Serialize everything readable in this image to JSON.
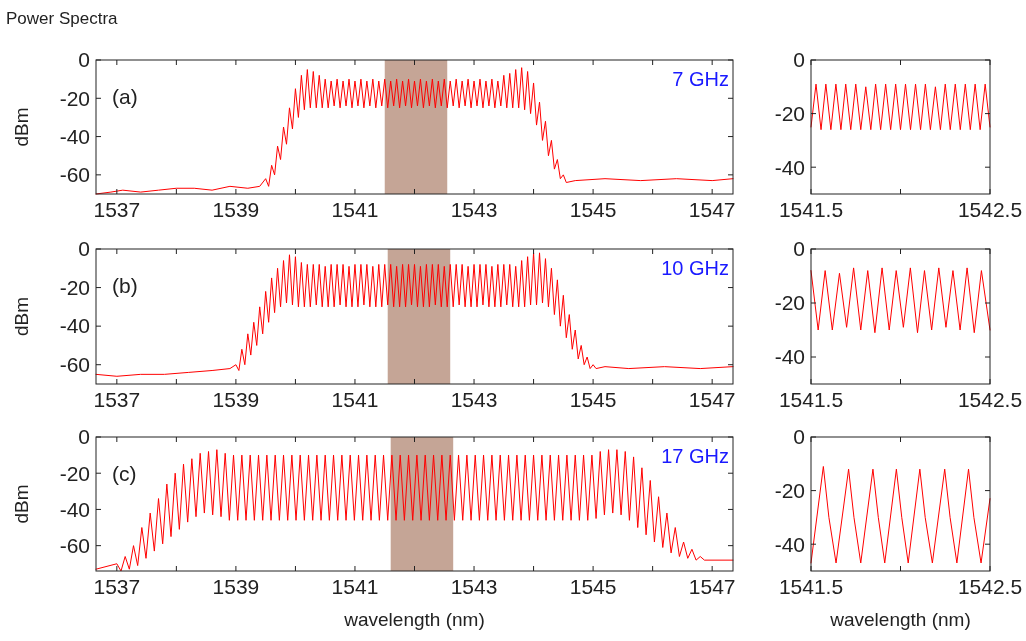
{
  "chart_data": [
    {
      "type": "line",
      "title": "Power Spectra",
      "ylabel": "dBm",
      "annotations": [
        "(a)",
        "7 GHz"
      ],
      "xlim": [
        1536.65,
        1547.35
      ],
      "xticks": [
        1537,
        {
          "value": 1538,
          "label": null
        },
        1539,
        {
          "value": 1540,
          "label": null
        },
        1541,
        {
          "value": 1542,
          "label": null
        },
        1543,
        {
          "value": 1544,
          "label": null
        },
        1545,
        {
          "value": 1546,
          "label": null
        },
        1547
      ],
      "ylim": [
        -70,
        0
      ],
      "yticks": [
        0,
        -20,
        -40,
        -60
      ],
      "bands": [
        {
          "axis": "x",
          "from": 1541.5,
          "to": 1542.55,
          "color": "#c5a596"
        }
      ],
      "series": [
        {
          "color": "#ff0000",
          "x": [
            1536.65,
            1536.9,
            1537.1,
            1537.4,
            1537.7,
            1538,
            1538.3,
            1538.6,
            1538.9,
            1539.2,
            1539.4,
            1539.5,
            1539.55,
            1539.6,
            1539.65,
            1539.7,
            1539.75,
            1539.8,
            1539.85,
            1539.9,
            1539.95,
            1540,
            1540.05,
            1540.1,
            1540.15,
            1540.2,
            1540.25,
            1540.3,
            1540.35,
            1540.4,
            1540.45,
            1540.5,
            1540.55,
            1540.6,
            1540.65,
            1540.7,
            1540.75,
            1540.8,
            1540.85,
            1540.9,
            1540.95,
            1541,
            1541.05,
            1541.1,
            1541.15,
            1541.2,
            1541.25,
            1541.3,
            1541.35,
            1541.4,
            1541.45,
            1541.5,
            1541.55,
            1541.6,
            1541.65,
            1541.7,
            1541.75,
            1541.8,
            1541.85,
            1541.9,
            1541.95,
            1542,
            1542.05,
            1542.1,
            1542.15,
            1542.2,
            1542.25,
            1542.3,
            1542.35,
            1542.4,
            1542.45,
            1542.5,
            1542.55,
            1542.6,
            1542.65,
            1542.7,
            1542.75,
            1542.8,
            1542.85,
            1542.9,
            1542.95,
            1543,
            1543.05,
            1543.1,
            1543.15,
            1543.2,
            1543.25,
            1543.3,
            1543.35,
            1543.4,
            1543.45,
            1543.5,
            1543.55,
            1543.6,
            1543.65,
            1543.7,
            1543.75,
            1543.8,
            1543.85,
            1543.9,
            1543.95,
            1544,
            1544.05,
            1544.1,
            1544.15,
            1544.2,
            1544.25,
            1544.3,
            1544.35,
            1544.4,
            1544.45,
            1544.5,
            1544.55,
            1544.7,
            1545.2,
            1545.8,
            1546.4,
            1547,
            1547.35
          ],
          "values": [
            -70,
            -69,
            -68,
            -69,
            -68,
            -67,
            -67,
            -68,
            -66,
            -67,
            -66,
            -62,
            -66,
            -55,
            -60,
            -45,
            -52,
            -35,
            -44,
            -25,
            -36,
            -15,
            -30,
            -8,
            -26,
            -5,
            -25,
            -6,
            -25,
            -8,
            -25,
            -10,
            -25,
            -11,
            -24,
            -10,
            -25,
            -11,
            -24,
            -10,
            -25,
            -11,
            -24,
            -10,
            -25,
            -11,
            -24,
            -10,
            -25,
            -11,
            -24,
            -10,
            -25,
            -11,
            -24,
            -10,
            -25,
            -11,
            -24,
            -10,
            -25,
            -11,
            -24,
            -10,
            -25,
            -11,
            -24,
            -10,
            -25,
            -11,
            -24,
            -10,
            -25,
            -11,
            -24,
            -10,
            -25,
            -11,
            -24,
            -10,
            -25,
            -11,
            -24,
            -10,
            -25,
            -11,
            -24,
            -10,
            -25,
            -11,
            -24,
            -8,
            -25,
            -7,
            -25,
            -5,
            -25,
            -4,
            -26,
            -6,
            -28,
            -12,
            -34,
            -22,
            -42,
            -32,
            -50,
            -42,
            -57,
            -52,
            -62,
            -60,
            -64,
            -63,
            -62,
            -63,
            -62,
            -63,
            -62
          ]
        }
      ]
    },
    {
      "type": "line",
      "xlim": [
        1541.5,
        1542.5
      ],
      "xticks": [
        1541.5,
        {
          "value": 1542,
          "label": null
        },
        1542.5
      ],
      "ylim": [
        -50,
        0
      ],
      "yticks": [
        0,
        -20,
        -40
      ],
      "series": [
        {
          "color": "#ff0000",
          "x": [
            1541.5,
            1541.528,
            1541.556,
            1541.583,
            1541.611,
            1541.639,
            1541.667,
            1541.694,
            1541.722,
            1541.75,
            1541.778,
            1541.806,
            1541.834,
            1541.861,
            1541.889,
            1541.917,
            1541.945,
            1541.973,
            1542,
            1542.028,
            1542.056,
            1542.084,
            1542.112,
            1542.139,
            1542.167,
            1542.195,
            1542.223,
            1542.25,
            1542.278,
            1542.306,
            1542.334,
            1542.362,
            1542.39,
            1542.417,
            1542.445,
            1542.473,
            1542.5
          ],
          "values": [
            -25,
            -9,
            -26,
            -9,
            -26,
            -9,
            -26,
            -9,
            -26,
            -9,
            -26,
            -10,
            -26,
            -9,
            -26,
            -9,
            -26,
            -9,
            -26,
            -9,
            -26,
            -9,
            -26,
            -9,
            -26,
            -10,
            -26,
            -9,
            -26,
            -9,
            -26,
            -9,
            -26,
            -9,
            -26,
            -9,
            -25
          ]
        }
      ]
    },
    {
      "type": "line",
      "ylabel": "dBm",
      "annotations": [
        "(b)",
        "10 GHz"
      ],
      "xlim": [
        1536.65,
        1547.35
      ],
      "xticks": [
        1537,
        {
          "value": 1538,
          "label": null
        },
        1539,
        {
          "value": 1540,
          "label": null
        },
        1541,
        {
          "value": 1542,
          "label": null
        },
        1543,
        {
          "value": 1544,
          "label": null
        },
        1545,
        {
          "value": 1546,
          "label": null
        },
        1547
      ],
      "ylim": [
        -70,
        0
      ],
      "yticks": [
        0,
        -20,
        -40,
        -60
      ],
      "bands": [
        {
          "axis": "x",
          "from": 1541.55,
          "to": 1542.6,
          "color": "#c5a596"
        }
      ],
      "series": [
        {
          "color": "#ff0000",
          "x": [
            1536.65,
            1537,
            1537.4,
            1537.8,
            1538.2,
            1538.6,
            1538.9,
            1539,
            1539.05,
            1539.1,
            1539.15,
            1539.2,
            1539.25,
            1539.3,
            1539.35,
            1539.4,
            1539.45,
            1539.5,
            1539.55,
            1539.6,
            1539.65,
            1539.7,
            1539.75,
            1539.8,
            1539.85,
            1539.9,
            1539.95,
            1540,
            1540.05,
            1540.1,
            1540.15,
            1540.2,
            1540.25,
            1540.3,
            1540.35,
            1540.4,
            1540.45,
            1540.5,
            1540.55,
            1540.6,
            1540.65,
            1540.7,
            1540.75,
            1540.8,
            1540.85,
            1540.9,
            1540.95,
            1541,
            1541.05,
            1541.1,
            1541.15,
            1541.2,
            1541.25,
            1541.3,
            1541.35,
            1541.4,
            1541.45,
            1541.5,
            1541.55,
            1541.6,
            1541.65,
            1541.7,
            1541.75,
            1541.8,
            1541.85,
            1541.9,
            1541.95,
            1542,
            1542.05,
            1542.1,
            1542.15,
            1542.2,
            1542.25,
            1542.3,
            1542.35,
            1542.4,
            1542.45,
            1542.5,
            1542.55,
            1542.6,
            1542.65,
            1542.7,
            1542.75,
            1542.8,
            1542.85,
            1542.9,
            1542.95,
            1543,
            1543.05,
            1543.1,
            1543.15,
            1543.2,
            1543.25,
            1543.3,
            1543.35,
            1543.4,
            1543.45,
            1543.5,
            1543.55,
            1543.6,
            1543.65,
            1543.7,
            1543.75,
            1543.8,
            1543.85,
            1543.9,
            1543.95,
            1544,
            1544.05,
            1544.1,
            1544.15,
            1544.2,
            1544.25,
            1544.3,
            1544.35,
            1544.4,
            1544.45,
            1544.5,
            1544.55,
            1544.6,
            1544.65,
            1544.7,
            1544.75,
            1544.8,
            1544.85,
            1544.9,
            1544.95,
            1545,
            1545.05,
            1545.2,
            1545.6,
            1546.2,
            1546.8,
            1547.35
          ],
          "values": [
            -65,
            -66,
            -65,
            -65,
            -64,
            -63,
            -62,
            -60,
            -63,
            -52,
            -60,
            -44,
            -55,
            -38,
            -50,
            -30,
            -44,
            -22,
            -38,
            -15,
            -33,
            -10,
            -30,
            -6,
            -28,
            -3,
            -29,
            -4,
            -30,
            -7,
            -30,
            -8,
            -30,
            -8,
            -29,
            -8,
            -30,
            -9,
            -30,
            -8,
            -30,
            -8,
            -29,
            -8,
            -30,
            -9,
            -30,
            -8,
            -30,
            -8,
            -29,
            -8,
            -30,
            -9,
            -30,
            -8,
            -30,
            -8,
            -29,
            -8,
            -30,
            -9,
            -30,
            -8,
            -30,
            -8,
            -29,
            -8,
            -30,
            -9,
            -30,
            -8,
            -30,
            -8,
            -29,
            -8,
            -30,
            -9,
            -30,
            -8,
            -30,
            -8,
            -29,
            -8,
            -30,
            -9,
            -30,
            -8,
            -30,
            -8,
            -29,
            -8,
            -30,
            -9,
            -30,
            -8,
            -30,
            -8,
            -29,
            -8,
            -30,
            -9,
            -30,
            -6,
            -30,
            -4,
            -29,
            -2,
            -29,
            -2,
            -28,
            -5,
            -30,
            -10,
            -34,
            -16,
            -40,
            -24,
            -46,
            -34,
            -52,
            -42,
            -57,
            -50,
            -60,
            -56,
            -62,
            -60,
            -62,
            -61,
            -62,
            -61,
            -62,
            -61
          ]
        }
      ]
    },
    {
      "type": "line",
      "xlim": [
        1541.5,
        1542.5
      ],
      "xticks": [
        1541.5,
        {
          "value": 1542,
          "label": null
        },
        1542.5
      ],
      "ylim": [
        -50,
        0
      ],
      "yticks": [
        0,
        -20,
        -40
      ],
      "series": [
        {
          "color": "#ff0000",
          "x": [
            1541.5,
            1541.54,
            1541.579,
            1541.619,
            1541.659,
            1541.699,
            1541.738,
            1541.778,
            1541.817,
            1541.857,
            1541.897,
            1541.937,
            1541.976,
            1542.016,
            1542.055,
            1542.095,
            1542.134,
            1542.174,
            1542.214,
            1542.254,
            1542.293,
            1542.333,
            1542.372,
            1542.412,
            1542.452,
            1542.5
          ],
          "values": [
            -8,
            -30,
            -8,
            -30,
            -9,
            -29,
            -7,
            -30,
            -8,
            -31,
            -7,
            -30,
            -8,
            -29,
            -7,
            -31,
            -8,
            -30,
            -7,
            -29,
            -8,
            -30,
            -7,
            -31,
            -8,
            -30
          ]
        }
      ]
    },
    {
      "type": "line",
      "ylabel": "dBm",
      "xlabel": "wavelength (nm)",
      "annotations": [
        "(c)",
        "17 GHz"
      ],
      "xlim": [
        1536.65,
        1547.35
      ],
      "xticks": [
        1537,
        {
          "value": 1538,
          "label": null
        },
        1539,
        {
          "value": 1540,
          "label": null
        },
        1541,
        {
          "value": 1542,
          "label": null
        },
        1543,
        {
          "value": 1544,
          "label": null
        },
        1545,
        {
          "value": 1546,
          "label": null
        },
        1547
      ],
      "ylim": [
        -74,
        0
      ],
      "yticks": [
        0,
        -20,
        -40,
        -60
      ],
      "bands": [
        {
          "axis": "x",
          "from": 1541.6,
          "to": 1542.65,
          "color": "#c5a596"
        }
      ],
      "series": [
        {
          "color": "#ff0000",
          "x": [
            1536.65,
            1537,
            1537.07,
            1537.14,
            1537.21,
            1537.28,
            1537.35,
            1537.42,
            1537.49,
            1537.56,
            1537.63,
            1537.7,
            1537.77,
            1537.84,
            1537.91,
            1537.98,
            1538.05,
            1538.12,
            1538.19,
            1538.26,
            1538.33,
            1538.4,
            1538.47,
            1538.54,
            1538.61,
            1538.68,
            1538.75,
            1538.82,
            1538.89,
            1538.96,
            1539.03,
            1539.1,
            1539.17,
            1539.24,
            1539.31,
            1539.38,
            1539.45,
            1539.52,
            1539.59,
            1539.66,
            1539.73,
            1539.8,
            1539.87,
            1539.94,
            1540.01,
            1540.08,
            1540.15,
            1540.22,
            1540.29,
            1540.36,
            1540.43,
            1540.5,
            1540.57,
            1540.64,
            1540.71,
            1540.78,
            1540.85,
            1540.92,
            1540.99,
            1541.06,
            1541.13,
            1541.2,
            1541.27,
            1541.34,
            1541.41,
            1541.48,
            1541.55,
            1541.62,
            1541.69,
            1541.76,
            1541.83,
            1541.9,
            1541.97,
            1542.04,
            1542.11,
            1542.18,
            1542.25,
            1542.32,
            1542.39,
            1542.46,
            1542.53,
            1542.6,
            1542.67,
            1542.74,
            1542.81,
            1542.88,
            1542.95,
            1543.02,
            1543.09,
            1543.16,
            1543.23,
            1543.3,
            1543.37,
            1543.44,
            1543.51,
            1543.58,
            1543.65,
            1543.72,
            1543.79,
            1543.86,
            1543.93,
            1544,
            1544.07,
            1544.14,
            1544.21,
            1544.28,
            1544.35,
            1544.42,
            1544.49,
            1544.56,
            1544.63,
            1544.7,
            1544.77,
            1544.84,
            1544.91,
            1544.98,
            1545.05,
            1545.12,
            1545.19,
            1545.26,
            1545.33,
            1545.4,
            1545.47,
            1545.54,
            1545.61,
            1545.68,
            1545.75,
            1545.82,
            1545.89,
            1545.96,
            1546.03,
            1546.1,
            1546.17,
            1546.24,
            1546.31,
            1546.38,
            1546.45,
            1546.52,
            1546.59,
            1546.66,
            1546.73,
            1546.8,
            1546.87,
            1547.35
          ],
          "values": [
            -73,
            -70,
            -74,
            -66,
            -73,
            -60,
            -71,
            -50,
            -67,
            -42,
            -63,
            -34,
            -59,
            -26,
            -55,
            -20,
            -51,
            -15,
            -47,
            -12,
            -44,
            -9,
            -42,
            -8,
            -43,
            -7,
            -44,
            -9,
            -46,
            -10,
            -46,
            -10,
            -46,
            -10,
            -46,
            -10,
            -46,
            -10,
            -46,
            -10,
            -46,
            -10,
            -46,
            -10,
            -46,
            -10,
            -46,
            -10,
            -46,
            -10,
            -46,
            -10,
            -46,
            -10,
            -46,
            -10,
            -46,
            -10,
            -46,
            -10,
            -46,
            -10,
            -46,
            -10,
            -46,
            -10,
            -46,
            -10,
            -46,
            -10,
            -46,
            -10,
            -46,
            -10,
            -46,
            -10,
            -46,
            -10,
            -46,
            -10,
            -46,
            -10,
            -46,
            -10,
            -46,
            -10,
            -46,
            -10,
            -46,
            -10,
            -46,
            -10,
            -46,
            -10,
            -46,
            -10,
            -46,
            -10,
            -46,
            -10,
            -46,
            -10,
            -46,
            -10,
            -46,
            -10,
            -46,
            -10,
            -46,
            -10,
            -46,
            -10,
            -46,
            -10,
            -46,
            -10,
            -45,
            -8,
            -43,
            -7,
            -42,
            -7,
            -43,
            -8,
            -46,
            -11,
            -50,
            -17,
            -54,
            -24,
            -58,
            -33,
            -61,
            -42,
            -64,
            -50,
            -66,
            -58,
            -67,
            -62,
            -68,
            -66,
            -68,
            -68
          ]
        }
      ]
    },
    {
      "type": "line",
      "xlabel": "wavelength (nm)",
      "xlim": [
        1541.5,
        1542.5
      ],
      "xticks": [
        1541.5,
        {
          "value": 1542,
          "label": null
        },
        1542.5
      ],
      "ylim": [
        -50,
        0
      ],
      "yticks": [
        0,
        -20,
        -40
      ],
      "series": [
        {
          "color": "#ff0000",
          "x": [
            1541.5,
            1541.569,
            1541.6,
            1541.64,
            1541.71,
            1541.74,
            1541.778,
            1541.846,
            1541.876,
            1541.912,
            1541.977,
            1542.007,
            1542.043,
            1542.108,
            1542.138,
            1542.178,
            1542.247,
            1542.277,
            1542.315,
            1542.38,
            1542.41,
            1542.45,
            1542.5
          ],
          "values": [
            -47,
            -11,
            -30,
            -47,
            -12,
            -30,
            -47,
            -12,
            -30,
            -47,
            -12,
            -30,
            -47,
            -12,
            -30,
            -47,
            -12,
            -30,
            -47,
            -12,
            -30,
            -47,
            -23
          ]
        }
      ]
    }
  ]
}
